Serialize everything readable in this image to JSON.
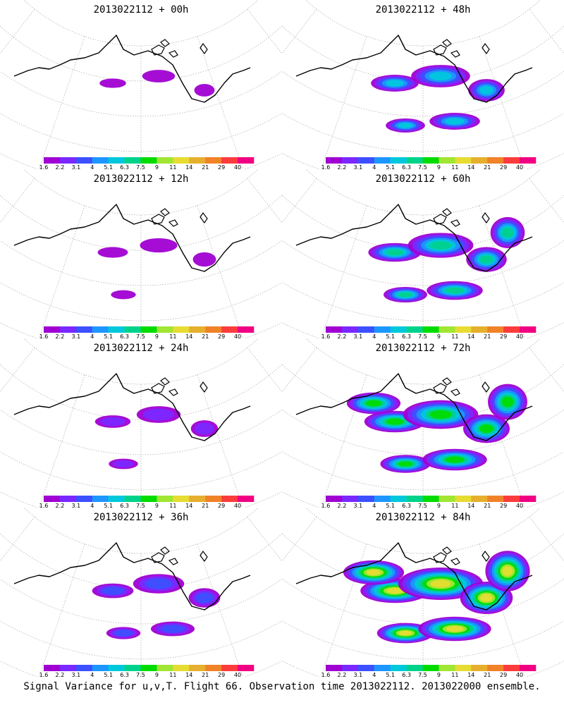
{
  "legend": {
    "levels": [
      "1.6",
      "2.2",
      "3.1",
      "4",
      "5.1",
      "6.3",
      "7.5",
      "9",
      "11",
      "14",
      "21",
      "29",
      "40"
    ],
    "colors": [
      "#a000d2",
      "#7a28ff",
      "#3c50ff",
      "#1e96ff",
      "#00c8dc",
      "#00d28c",
      "#00dc00",
      "#a0e632",
      "#e6dc32",
      "#e6af2d",
      "#f08228",
      "#fa3c3c",
      "#f00082"
    ]
  },
  "panels": [
    {
      "title": "2013022112 + 00h",
      "intensity": 0.05
    },
    {
      "title": "2013022112 + 48h",
      "intensity": 0.45
    },
    {
      "title": "2013022112 + 12h",
      "intensity": 0.12
    },
    {
      "title": "2013022112 + 60h",
      "intensity": 0.55
    },
    {
      "title": "2013022112 + 24h",
      "intensity": 0.22
    },
    {
      "title": "2013022112 + 72h",
      "intensity": 0.7
    },
    {
      "title": "2013022112 + 36h",
      "intensity": 0.33
    },
    {
      "title": "2013022112 + 84h",
      "intensity": 0.85
    }
  ],
  "footer": "Signal Variance for u,v,T. Flight 66. Observation time 2013022112. 2013022000 ensemble."
}
